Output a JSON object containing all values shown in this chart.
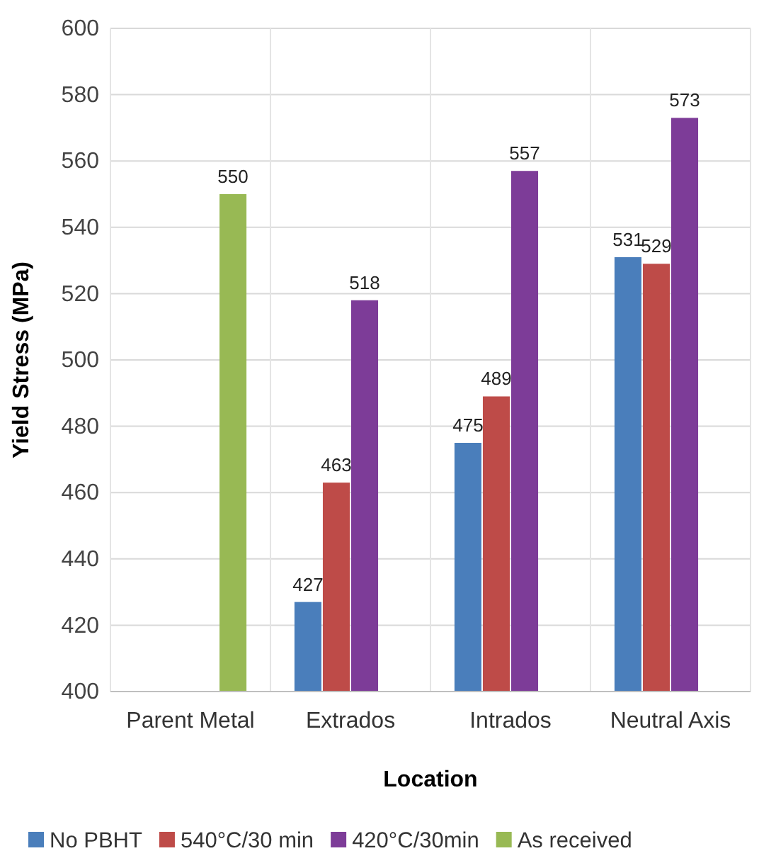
{
  "chart_data": {
    "type": "bar",
    "xlabel": "Location",
    "ylabel": "Yield Stress (MPa)",
    "categories": [
      "Parent Metal",
      "Extrados",
      "Intrados",
      "Neutral Axis"
    ],
    "series": [
      {
        "name": "No PBHT",
        "color": "#4a7ebb",
        "values": [
          null,
          427,
          475,
          531
        ]
      },
      {
        "name": "540°C/30 min",
        "color": "#be4b48",
        "values": [
          null,
          463,
          489,
          529
        ]
      },
      {
        "name": "420°C/30min",
        "color": "#7d3c98",
        "values": [
          null,
          518,
          557,
          573
        ]
      },
      {
        "name": "As received",
        "color": "#98b954",
        "values": [
          550,
          null,
          null,
          null
        ]
      }
    ],
    "ylim": [
      400,
      600
    ],
    "yticks": [
      400,
      420,
      440,
      460,
      480,
      500,
      520,
      540,
      560,
      580,
      600
    ],
    "grid": true,
    "legend": "bottom",
    "data_labels": true
  }
}
